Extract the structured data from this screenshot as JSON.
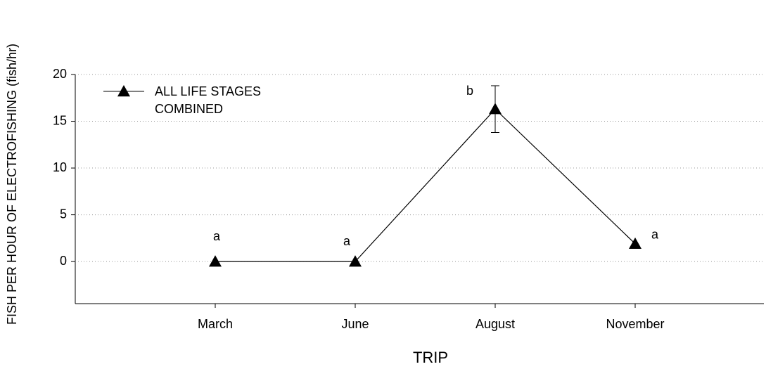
{
  "chart_data": {
    "type": "line",
    "x_label": "TRIP",
    "y_label": "FISH PER HOUR OF ELECTROFISHING (fish/hr)",
    "categories": [
      "March",
      "June",
      "August",
      "November"
    ],
    "series": [
      {
        "name": "ALL LIFE STAGES COMBINED",
        "color": "#000000",
        "values": [
          0,
          0,
          16.3,
          1.9
        ],
        "errors": [
          null,
          null,
          2.5,
          null
        ],
        "annotations": [
          "a",
          "a",
          "b",
          "a"
        ]
      }
    ],
    "ylim": [
      -4.5,
      20
    ],
    "yticks": [
      0,
      5,
      10,
      15,
      20
    ],
    "grid": true,
    "legend": "upper left"
  }
}
